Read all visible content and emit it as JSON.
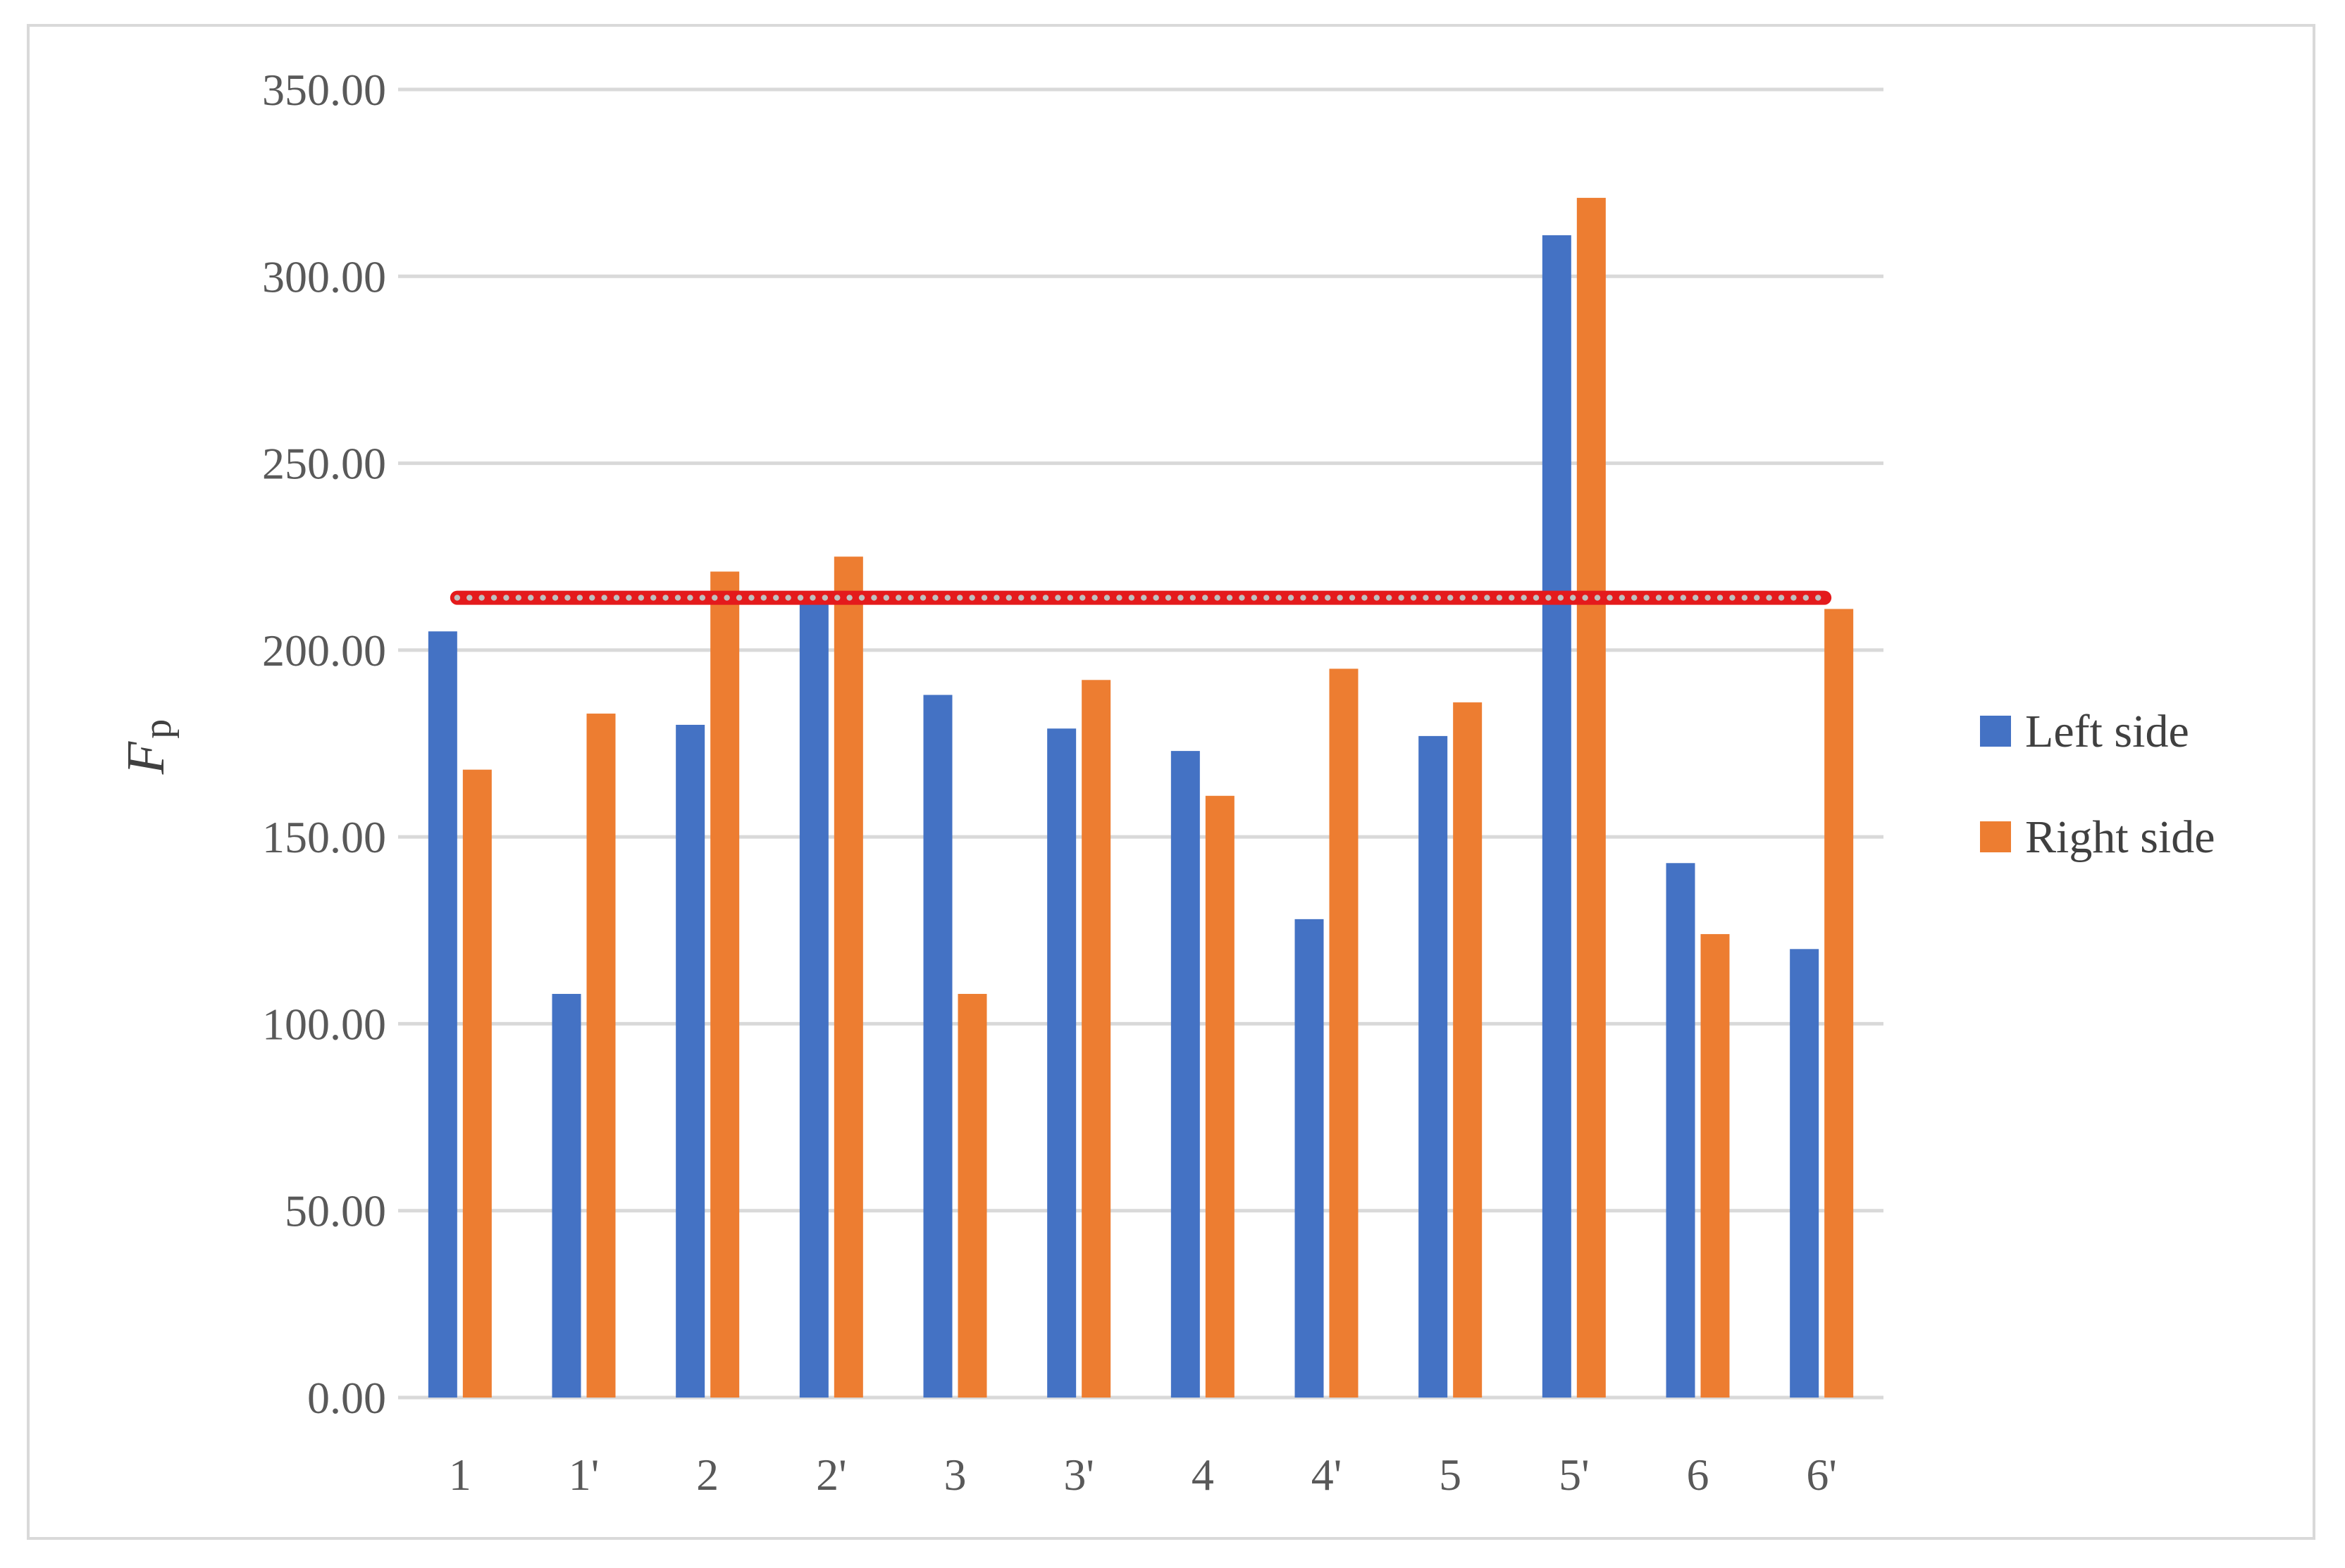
{
  "chart_data": {
    "type": "bar",
    "title": "",
    "xlabel": "",
    "ylabel": "F",
    "ylabel_subscript": "p",
    "ylim": [
      0,
      350
    ],
    "yticks": [
      "0.00",
      "50.00",
      "100.00",
      "150.00",
      "200.00",
      "250.00",
      "300.00",
      "350.00"
    ],
    "ytick_values": [
      0,
      50,
      100,
      150,
      200,
      250,
      300,
      350
    ],
    "grid": true,
    "legend_position": "right",
    "categories": [
      "1",
      "1'",
      "2",
      "2'",
      "3",
      "3'",
      "4",
      "4'",
      "5",
      "5'",
      "6",
      "6'"
    ],
    "series": [
      {
        "name": "Left side",
        "color": "#4472c4",
        "values": [
          205,
          108,
          180,
          213,
          188,
          179,
          173,
          128,
          177,
          311,
          143,
          120
        ]
      },
      {
        "name": "Right side",
        "color": "#ed7d31",
        "values": [
          168,
          183,
          221,
          225,
          108,
          192,
          161,
          195,
          186,
          321,
          124,
          211
        ]
      }
    ],
    "reference_line": {
      "value": 214,
      "color": "#e41a1c",
      "marker_color": "#bfbfbf"
    }
  }
}
